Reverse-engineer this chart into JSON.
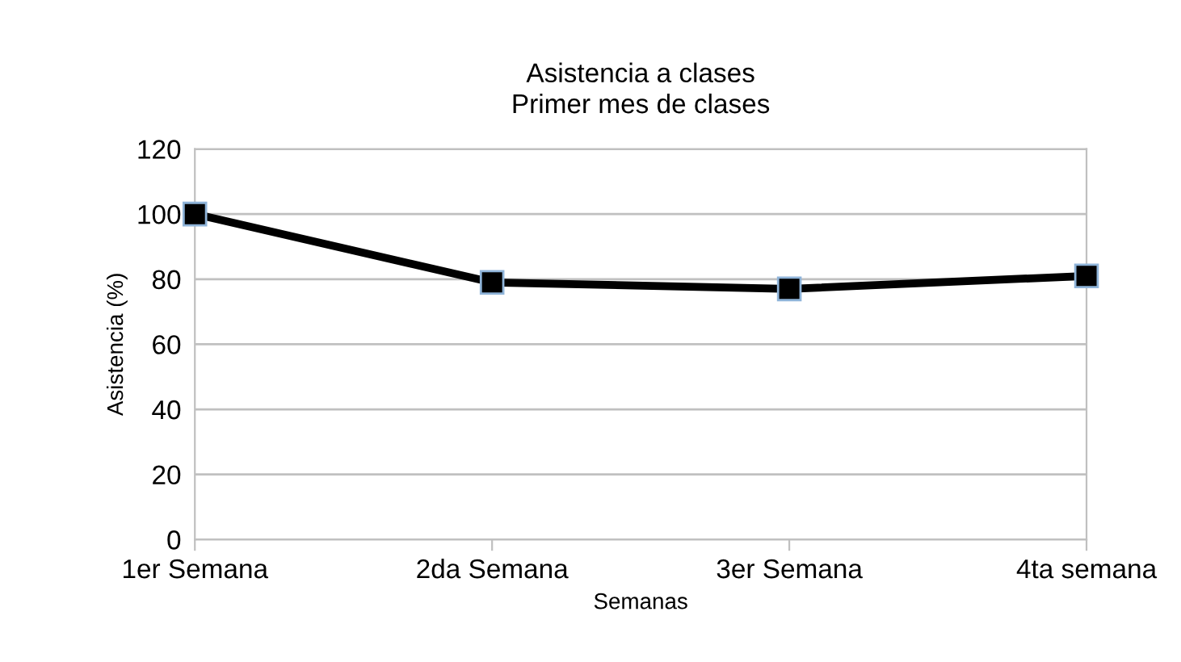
{
  "chart_data": {
    "type": "line",
    "title": "Asistencia a clases\nPrimer mes de clases",
    "xlabel": "Semanas",
    "ylabel": "Asistencia (%)",
    "categories": [
      "1er Semana",
      "2da Semana",
      "3er Semana",
      "4ta semana"
    ],
    "series": [
      {
        "color": "#000000",
        "values": [
          100,
          79,
          77,
          81
        ]
      }
    ],
    "ylim": [
      0,
      120
    ],
    "yticks": [
      0,
      20,
      40,
      60,
      80,
      100,
      120
    ],
    "grid": "y",
    "marker": "square",
    "line_style": "solid"
  }
}
